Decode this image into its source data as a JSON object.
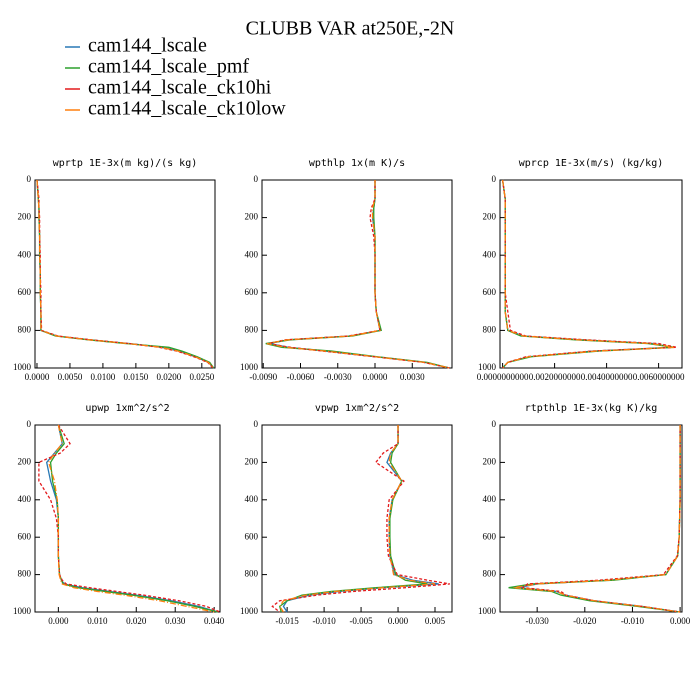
{
  "title": "CLUBB VAR at250E,-2N",
  "legend": [
    {
      "name": "cam144_lscale",
      "color": "#2878b5"
    },
    {
      "name": "cam144_lscale_pmf",
      "color": "#2ca02c"
    },
    {
      "name": "cam144_lscale_ck10hi",
      "color": "#e31a1c"
    },
    {
      "name": "cam144_lscale_ck10low",
      "color": "#ff7f0e"
    }
  ],
  "chart_data": [
    {
      "type": "line",
      "title": "wprtp  1E-3x(m kg)/(s kg)",
      "y": [
        0,
        100,
        150,
        200,
        300,
        400,
        500,
        600,
        700,
        800,
        830,
        850,
        870,
        890,
        910,
        940,
        970,
        1000
      ],
      "ylim": [
        1000,
        0
      ],
      "yticks": [
        0,
        200,
        400,
        600,
        800,
        1000
      ],
      "xlim": [
        -0.0003,
        0.027
      ],
      "xticks": [
        {
          "value": 0,
          "label": "0.0000"
        },
        {
          "value": 0.005,
          "label": "0.0050"
        },
        {
          "value": 0.01,
          "label": "0.0100"
        },
        {
          "value": 0.015,
          "label": "0.0150"
        },
        {
          "value": 0.02,
          "label": "0.0200"
        },
        {
          "value": 0.025,
          "label": "0.0250"
        }
      ],
      "series": [
        {
          "color": "#2878b5",
          "values": [
            0,
            0.0002,
            0.0003,
            0.0003,
            0.0004,
            0.0004,
            0.0005,
            0.0005,
            0.0006,
            0.0006,
            0.003,
            0.008,
            0.014,
            0.019,
            0.0215,
            0.024,
            0.026,
            0.0268
          ]
        },
        {
          "color": "#2ca02c",
          "values": [
            0,
            0.0002,
            0.0003,
            0.0003,
            0.0004,
            0.0004,
            0.0005,
            0.0005,
            0.0006,
            0.0006,
            0.0028,
            0.0078,
            0.0135,
            0.02,
            0.022,
            0.0243,
            0.0262,
            0.0268
          ]
        },
        {
          "color": "#e31a1c",
          "values": [
            0,
            0.0003,
            0.0003,
            0.0004,
            0.0004,
            0.0005,
            0.0005,
            0.0006,
            0.0006,
            0.0007,
            0.0032,
            0.0082,
            0.014,
            0.0185,
            0.0212,
            0.0238,
            0.0259,
            0.0267
          ]
        },
        {
          "color": "#ff7f0e",
          "values": [
            0,
            0.0002,
            0.0003,
            0.0003,
            0.0004,
            0.0004,
            0.0005,
            0.0005,
            0.0006,
            0.0006,
            0.003,
            0.0079,
            0.0138,
            0.0188,
            0.0214,
            0.024,
            0.026,
            0.0268
          ]
        }
      ]
    },
    {
      "type": "line",
      "title": "wpthlp  1x(m K)/s",
      "y": [
        0,
        100,
        150,
        200,
        300,
        400,
        500,
        600,
        700,
        800,
        830,
        850,
        870,
        890,
        910,
        940,
        970,
        1000
      ],
      "ylim": [
        1000,
        0
      ],
      "yticks": [
        0,
        200,
        400,
        600,
        800,
        1000
      ],
      "xlim": [
        -0.0091,
        0.0062
      ],
      "xticks": [
        {
          "value": -0.009,
          "label": "-0.0090"
        },
        {
          "value": -0.006,
          "label": "-0.0060"
        },
        {
          "value": -0.003,
          "label": "-0.0030"
        },
        {
          "value": 0,
          "label": "0.0000"
        },
        {
          "value": 0.003,
          "label": "0.0030"
        }
      ],
      "series": [
        {
          "color": "#2878b5",
          "values": [
            0,
            0,
            -0.0001,
            -0.0002,
            0,
            0,
            0,
            0,
            0.0001,
            0.0004,
            -0.002,
            -0.007,
            -0.0085,
            -0.007,
            -0.004,
            0,
            0.004,
            0.006
          ]
        },
        {
          "color": "#2ca02c",
          "values": [
            0,
            0,
            -0.0001,
            -0.0001,
            0,
            0,
            0,
            0,
            0.0001,
            0.0005,
            -0.0018,
            -0.0068,
            -0.0088,
            -0.0075,
            -0.0035,
            0.0002,
            0.0042,
            0.006
          ]
        },
        {
          "color": "#e31a1c",
          "values": [
            0,
            0,
            -0.0003,
            -0.0004,
            -0.0001,
            0,
            0,
            0,
            0.0001,
            0.0004,
            -0.0022,
            -0.0072,
            -0.0086,
            -0.0068,
            -0.0042,
            -0.0001,
            0.0039,
            0.006
          ]
        },
        {
          "color": "#ff7f0e",
          "values": [
            0,
            0,
            -0.0002,
            -0.0002,
            0,
            0,
            0,
            0,
            0.0001,
            0.0004,
            -0.002,
            -0.007,
            -0.0087,
            -0.0072,
            -0.004,
            0,
            0.004,
            0.006
          ]
        }
      ]
    },
    {
      "type": "line",
      "title": "wprcp  1E-3x(m/s) (kg/kg)",
      "y": [
        0,
        100,
        150,
        200,
        300,
        400,
        500,
        600,
        700,
        800,
        830,
        850,
        870,
        890,
        910,
        940,
        970,
        1000
      ],
      "ylim": [
        1000,
        0
      ],
      "yticks": [
        0,
        200,
        400,
        600,
        800,
        1000
      ],
      "xlim": [
        -0.0001,
        0.0069
      ],
      "xticks": [
        {
          "value": 0,
          "label": "0.0000000000"
        },
        {
          "value": 0.002,
          "label": "0.0020000000"
        },
        {
          "value": 0.004,
          "label": "0.0040000000"
        },
        {
          "value": 0.006,
          "label": "0.0060000000"
        }
      ],
      "series": [
        {
          "color": "#2878b5",
          "values": [
            0,
            0.0001,
            0.0001,
            0.0001,
            0.0001,
            0.0001,
            0.0001,
            0.0001,
            0.0001,
            0.0002,
            0.0008,
            0.003,
            0.0058,
            0.0065,
            0.0035,
            0.001,
            0.0002,
            0
          ]
        },
        {
          "color": "#2ca02c",
          "values": [
            0,
            0.0001,
            0.0001,
            0.0001,
            0.0001,
            0.0001,
            0.0001,
            0.0001,
            0.0001,
            0.0002,
            0.0007,
            0.0028,
            0.0056,
            0.0066,
            0.0037,
            0.0011,
            0.0002,
            0
          ]
        },
        {
          "color": "#e31a1c",
          "values": [
            0,
            0.0001,
            0.0001,
            0.0001,
            0.0001,
            0.0001,
            0.0001,
            0.0001,
            0.0002,
            0.0003,
            0.0009,
            0.0032,
            0.006,
            0.0067,
            0.0034,
            0.0009,
            0.0002,
            0
          ]
        },
        {
          "color": "#ff7f0e",
          "values": [
            0,
            0.0001,
            0.0001,
            0.0001,
            0.0001,
            0.0001,
            0.0001,
            0.0001,
            0.0001,
            0.0002,
            0.0008,
            0.0029,
            0.0057,
            0.0066,
            0.0036,
            0.001,
            0.0002,
            0
          ]
        }
      ]
    },
    {
      "type": "line",
      "title": "upwp  1xm^2/s^2",
      "y": [
        0,
        100,
        150,
        200,
        300,
        400,
        500,
        600,
        700,
        800,
        830,
        850,
        870,
        890,
        910,
        940,
        970,
        1000
      ],
      "ylim": [
        1000,
        0
      ],
      "yticks": [
        0,
        200,
        400,
        600,
        800,
        1000
      ],
      "xlim": [
        -0.006,
        0.0415
      ],
      "xticks": [
        {
          "value": 0,
          "label": "0.000"
        },
        {
          "value": 0.01,
          "label": "0.010"
        },
        {
          "value": 0.02,
          "label": "0.020"
        },
        {
          "value": 0.03,
          "label": "0.030"
        },
        {
          "value": 0.04,
          "label": "0.040"
        }
      ],
      "series": [
        {
          "color": "#2878b5",
          "values": [
            0,
            0.001,
            -0.001,
            -0.003,
            -0.002,
            -0.0005,
            0,
            0,
            0,
            0.0003,
            0.0008,
            0.0015,
            0.006,
            0.013,
            0.02,
            0.029,
            0.036,
            0.041
          ]
        },
        {
          "color": "#2ca02c",
          "values": [
            0,
            0.0015,
            -0.0005,
            -0.002,
            -0.0015,
            -0.0003,
            0,
            0,
            0,
            0.0003,
            0.0008,
            0.0012,
            0.005,
            0.012,
            0.019,
            0.028,
            0.035,
            0.041
          ]
        },
        {
          "color": "#e31a1c",
          "values": [
            0,
            0.003,
            0.0005,
            -0.005,
            -0.005,
            -0.002,
            -0.0005,
            0,
            0,
            0.0003,
            0.001,
            0.002,
            0.008,
            0.015,
            0.022,
            0.031,
            0.038,
            0.0415
          ]
        },
        {
          "color": "#ff7f0e",
          "values": [
            0,
            0.001,
            -0.001,
            -0.0025,
            -0.001,
            -0.0003,
            0,
            0,
            0,
            0.0002,
            0.0006,
            0.001,
            0.004,
            0.01,
            0.017,
            0.026,
            0.033,
            0.04
          ]
        }
      ]
    },
    {
      "type": "line",
      "title": "vpwp  1xm^2/s^2",
      "y": [
        0,
        100,
        150,
        200,
        300,
        400,
        500,
        600,
        700,
        800,
        830,
        850,
        870,
        890,
        910,
        940,
        970,
        1000
      ],
      "ylim": [
        1000,
        0
      ],
      "yticks": [
        0,
        200,
        400,
        600,
        800,
        1000
      ],
      "xlim": [
        -0.0184,
        0.0073
      ],
      "xticks": [
        {
          "value": -0.015,
          "label": "-0.015"
        },
        {
          "value": -0.01,
          "label": "-0.010"
        },
        {
          "value": -0.005,
          "label": "-0.005"
        },
        {
          "value": 0,
          "label": "0.000"
        },
        {
          "value": 0.005,
          "label": "0.005"
        }
      ],
      "series": [
        {
          "color": "#2878b5",
          "values": [
            0,
            0,
            -0.001,
            -0.0015,
            0.0005,
            -0.0008,
            -0.0012,
            -0.0012,
            -0.0011,
            -0.0005,
            0.002,
            0.0055,
            -0.002,
            -0.008,
            -0.012,
            -0.015,
            -0.0155,
            -0.015
          ]
        },
        {
          "color": "#2ca02c",
          "values": [
            0,
            0,
            -0.0008,
            -0.001,
            0.0005,
            -0.0007,
            -0.0011,
            -0.0011,
            -0.001,
            -0.0003,
            0.001,
            0.004,
            -0.003,
            -0.009,
            -0.013,
            -0.015,
            -0.016,
            -0.0158
          ]
        },
        {
          "color": "#e31a1c",
          "values": [
            0,
            0,
            -0.002,
            -0.003,
            0.0008,
            -0.0012,
            -0.0015,
            -0.0015,
            -0.0013,
            -0.0001,
            0.004,
            0.007,
            0.001,
            -0.006,
            -0.011,
            -0.016,
            -0.017,
            -0.016
          ]
        },
        {
          "color": "#ff7f0e",
          "values": [
            0,
            0,
            -0.001,
            -0.0012,
            0.0005,
            -0.0008,
            -0.0012,
            -0.0012,
            -0.0011,
            -0.0006,
            0.0015,
            0.005,
            -0.002,
            -0.0085,
            -0.0125,
            -0.0155,
            -0.016,
            -0.0155
          ]
        }
      ]
    },
    {
      "type": "line",
      "title": "rtpthlp  1E-3x(kg K)/kg",
      "y": [
        0,
        100,
        150,
        200,
        300,
        400,
        500,
        600,
        700,
        800,
        830,
        850,
        870,
        890,
        910,
        940,
        970,
        1000
      ],
      "ylim": [
        1000,
        0
      ],
      "yticks": [
        0,
        200,
        400,
        600,
        800,
        1000
      ],
      "xlim": [
        -0.0378,
        0.0004
      ],
      "xticks": [
        {
          "value": -0.03,
          "label": "-0.030"
        },
        {
          "value": -0.02,
          "label": "-0.020"
        },
        {
          "value": -0.01,
          "label": "-0.010"
        },
        {
          "value": 0,
          "label": "0.000"
        }
      ],
      "series": [
        {
          "color": "#2878b5",
          "values": [
            0,
            0,
            0,
            0,
            0,
            0,
            -0.0001,
            -0.0002,
            -0.0005,
            -0.003,
            -0.015,
            -0.03,
            -0.034,
            -0.026,
            -0.024,
            -0.018,
            -0.008,
            0
          ]
        },
        {
          "color": "#2ca02c",
          "values": [
            0,
            0,
            0,
            0,
            0,
            0,
            -0.0001,
            -0.0002,
            -0.0005,
            -0.003,
            -0.014,
            -0.031,
            -0.036,
            -0.027,
            -0.025,
            -0.019,
            -0.009,
            0
          ]
        },
        {
          "color": "#e31a1c",
          "values": [
            0,
            0,
            0,
            0,
            0,
            0,
            -0.0001,
            -0.0002,
            -0.0006,
            -0.0035,
            -0.017,
            -0.032,
            -0.033,
            -0.025,
            -0.024,
            -0.018,
            -0.008,
            0
          ]
        },
        {
          "color": "#ff7f0e",
          "values": [
            0,
            0,
            0,
            0,
            0,
            0,
            -0.0001,
            -0.0002,
            -0.0005,
            -0.003,
            -0.015,
            -0.03,
            -0.035,
            -0.026,
            -0.024,
            -0.018,
            -0.008,
            0
          ]
        }
      ]
    }
  ]
}
